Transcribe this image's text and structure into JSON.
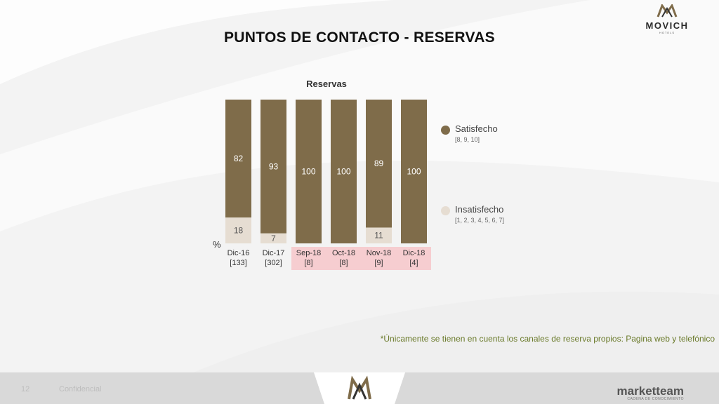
{
  "header": {
    "logo_text": "MOVICH",
    "logo_sub": "HOTELS",
    "title": "PUNTOS DE CONTACTO - RESERVAS"
  },
  "chart_data": {
    "type": "bar",
    "stacked": true,
    "title": "Reservas",
    "ylabel": "%",
    "ylim": [
      0,
      100
    ],
    "categories": [
      "Dic-16",
      "Dic-17",
      "Sep-18",
      "Oct-18",
      "Nov-18",
      "Dic-18"
    ],
    "sample_sizes": [
      "[133]",
      "[302]",
      "[8]",
      "[8]",
      "[9]",
      "[4]"
    ],
    "highlighted_categories": [
      "Sep-18",
      "Oct-18",
      "Nov-18",
      "Dic-18"
    ],
    "series": [
      {
        "name": "Insatisfecho",
        "scale": "[1, 2, 3, 4, 5, 6, 7]",
        "color": "#e6ddd2",
        "values": [
          18,
          7,
          0,
          0,
          11,
          0
        ]
      },
      {
        "name": "Satisfecho",
        "scale": "[8, 9, 10]",
        "color": "#7f6c4a",
        "values": [
          82,
          93,
          100,
          100,
          89,
          100
        ]
      }
    ],
    "grid": false,
    "legend_position": "right"
  },
  "footnote": "*Únicamente se tienen en cuenta los canales de reserva propios: Pagina web y telefónico",
  "footer": {
    "page_number": "12",
    "confidential": "Confidencial",
    "brand": "marketteam",
    "brand_sub": "CADENA DE CONOCIMIENTO"
  },
  "colors": {
    "highlight_band": "#f6cdd0",
    "label_light": "#ffffff",
    "label_dark": "#555555"
  }
}
